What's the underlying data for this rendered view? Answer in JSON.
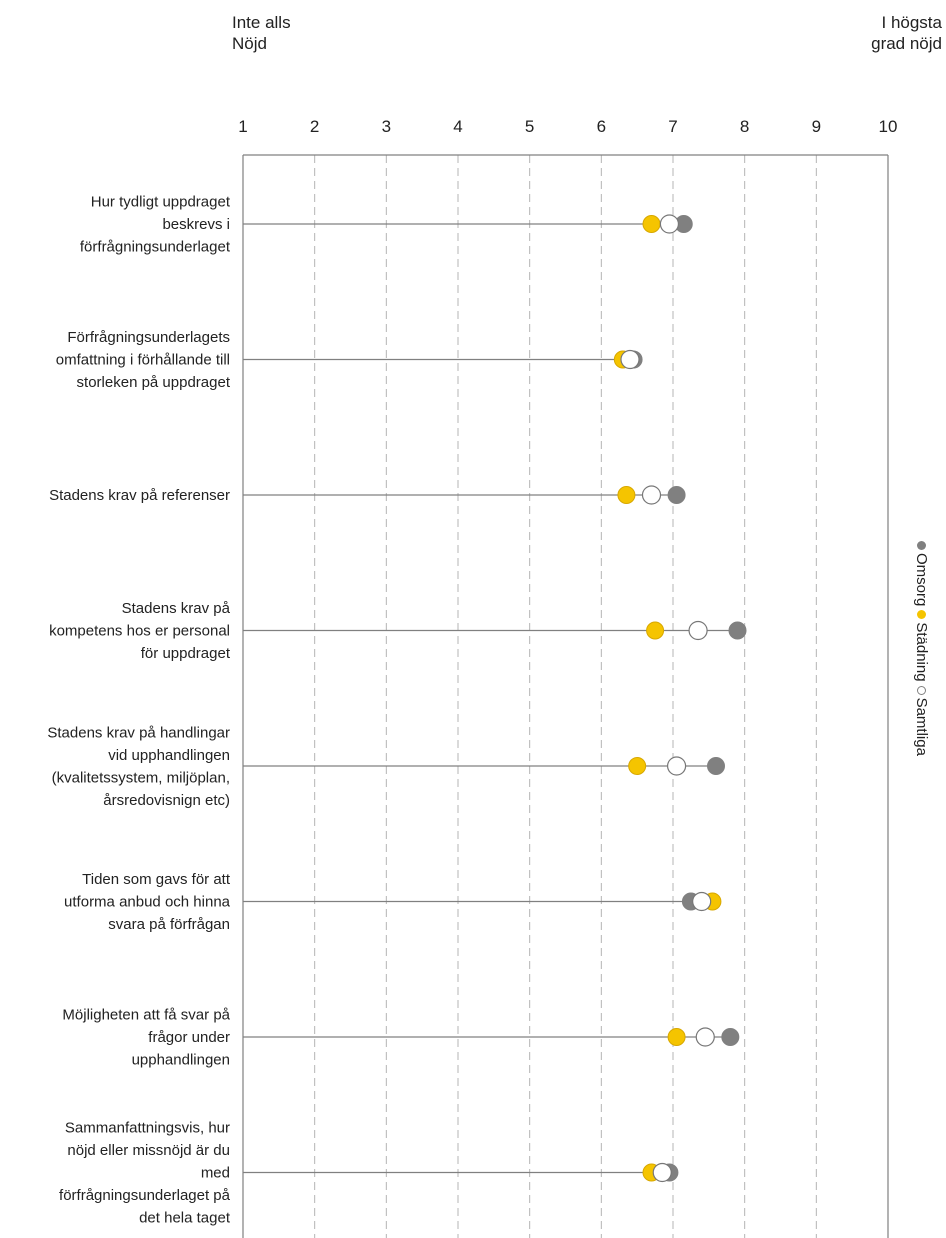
{
  "anchors": {
    "low": "Inte alls\nNöjd",
    "high": "I högsta\ngrad nöjd"
  },
  "colors": {
    "Omsorg": "#808080",
    "Städning": "#F5C400",
    "Samtliga": "#FFFFFF",
    "axis": "#808080",
    "grid": "#b5b5b5",
    "connector": "#808080"
  },
  "chart_data": {
    "type": "dot",
    "xlim": [
      1,
      10
    ],
    "x_ticks": [
      "1",
      "2",
      "3",
      "4",
      "5",
      "6",
      "7",
      "8",
      "9",
      "10"
    ],
    "grid": "vertical dashed",
    "legend_position": "right, vertical",
    "legend": [
      "Omsorg",
      "Städning",
      "Samtliga"
    ],
    "categories": [
      "Hur tydligt uppdraget beskrevs i förfrågningsunderlaget",
      "Förfrågningsunderlagets omfattning i förhållande till storleken på uppdraget",
      "Stadens krav på referenser",
      "Stadens krav på kompetens hos er personal för uppdraget",
      "Stadens krav på handlingar vid upphandlingen (kvalitetssystem, miljöplan, årsredovisnign etc)",
      "Tiden som gavs för att utforma anbud och hinna svara på förfrågan",
      "Möjligheten att få svar på frågor under upphandlingen",
      "Sammanfattningsvis, hur nöjd eller missnöjd är du med förfrågningsunderlaget på det hela taget"
    ],
    "category_lines": [
      [
        "Hur tydligt uppdraget",
        "beskrevs i",
        "förfrågningsunderlaget"
      ],
      [
        "Förfrågningsunderlagets",
        "omfattning i förhållande till",
        "storleken på uppdraget"
      ],
      [
        "Stadens krav på referenser"
      ],
      [
        "Stadens krav på",
        "kompetens hos er personal",
        "för uppdraget"
      ],
      [
        "Stadens krav på handlingar",
        "vid upphandlingen",
        "(kvalitetssystem, miljöplan,",
        "årsredovisnign etc)"
      ],
      [
        "Tiden som gavs för att",
        "utforma anbud och hinna",
        "svara på förfrågan"
      ],
      [
        "Möjligheten att få svar på",
        "frågor under",
        "upphandlingen"
      ],
      [
        "Sammanfattningsvis, hur",
        "nöjd eller missnöjd är du",
        "med",
        "förfrågningsunderlaget på",
        "det hela taget"
      ]
    ],
    "series": [
      {
        "name": "Omsorg",
        "values": [
          7.15,
          6.45,
          7.05,
          7.9,
          7.6,
          7.25,
          7.8,
          6.95
        ]
      },
      {
        "name": "Städning",
        "values": [
          6.7,
          6.3,
          6.35,
          6.75,
          6.5,
          7.55,
          7.05,
          6.7
        ]
      },
      {
        "name": "Samtliga",
        "values": [
          6.95,
          6.4,
          6.7,
          7.35,
          7.05,
          7.4,
          7.45,
          6.85
        ]
      }
    ]
  }
}
